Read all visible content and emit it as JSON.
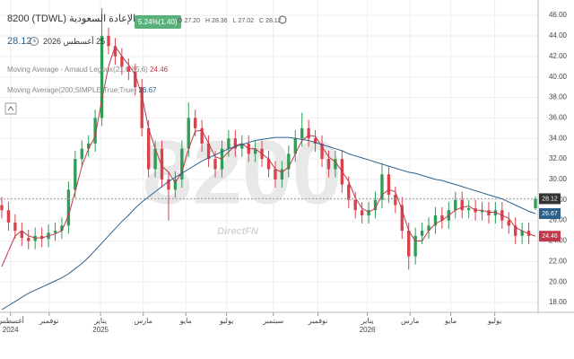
{
  "header": {
    "symbol": "8200 (TDWL)",
    "name": "الإعادة السعودية",
    "change": "5.24%(1.40)",
    "ohlc": [
      {
        "key": "O",
        "text": "27.20"
      },
      {
        "key": "H",
        "text": "28.36"
      },
      {
        "key": "L",
        "text": "27.02"
      },
      {
        "key": "C",
        "text": "28.12"
      }
    ],
    "last": "28.12",
    "date": "25 أغسطس 2026"
  },
  "chart_data": {
    "type": "candlestick",
    "watermark": "8200",
    "brand": "DirectFN",
    "up_color": "#2e9e56",
    "down_color": "#d9424b",
    "grid": true,
    "xlim": [
      -0.27,
      80.4
    ],
    "ylim": [
      17.04,
      47.5
    ],
    "yticks": [
      {
        "value": 18,
        "label": "18.00"
      },
      {
        "value": 20,
        "label": "20.00"
      },
      {
        "value": 22,
        "label": "22.00"
      },
      {
        "value": 24,
        "label": "24.00"
      },
      {
        "value": 26,
        "label": "26.00"
      },
      {
        "value": 28,
        "label": "28.00"
      },
      {
        "value": 30,
        "label": "30.00"
      },
      {
        "value": 32,
        "label": "32.00"
      },
      {
        "value": 34,
        "label": "34.00"
      },
      {
        "value": 36,
        "label": "36.00"
      },
      {
        "value": 38,
        "label": "38.00"
      },
      {
        "value": 40,
        "label": "40.00"
      },
      {
        "value": 42,
        "label": "42.00"
      },
      {
        "value": 44,
        "label": "44.00"
      },
      {
        "value": 46,
        "label": "46.00"
      }
    ],
    "xticks": [
      {
        "value": 1.3,
        "label": "أغسطس"
      },
      {
        "value": 7.1,
        "label": "نوفمبر"
      },
      {
        "value": 14.8,
        "label": "يناير"
      },
      {
        "value": 21.2,
        "label": "مارس"
      },
      {
        "value": 27.6,
        "label": "مايو"
      },
      {
        "value": 33.7,
        "label": "يوليو"
      },
      {
        "value": 40.7,
        "label": "سبتمبر"
      },
      {
        "value": 47.4,
        "label": "نوفمبر"
      },
      {
        "value": 54.8,
        "label": "يناير"
      },
      {
        "value": 61.2,
        "label": "مارس"
      },
      {
        "value": 67.3,
        "label": "مايو"
      },
      {
        "value": 73.9,
        "label": "يوليو"
      }
    ],
    "xyears": [
      {
        "value": 1.3,
        "label": "2024"
      },
      {
        "value": 14.8,
        "label": "2025"
      },
      {
        "value": 54.8,
        "label": "2026"
      }
    ],
    "open": [
      27.5,
      27,
      25.8,
      25,
      24.3,
      24,
      24.5,
      24.2,
      24.8,
      25,
      25.5,
      29,
      32,
      33,
      33.5,
      36,
      44,
      43,
      42,
      41,
      40.5,
      39,
      35,
      31,
      33,
      30,
      29,
      30,
      33,
      36,
      35,
      33.5,
      32,
      31,
      33,
      34,
      33,
      33.5,
      32.5,
      33,
      32,
      31,
      30,
      31,
      32.5,
      34,
      35,
      34,
      33.5,
      32,
      31,
      32,
      29.5,
      28,
      27,
      26.5,
      27,
      28,
      30.5,
      28.5,
      27.5,
      25,
      22.5,
      24.5,
      25,
      25.5,
      26.5,
      26,
      27,
      28,
      27,
      27.2,
      26.8,
      27,
      26.5,
      27,
      26,
      25.5,
      24.5,
      25,
      27.2
    ],
    "high": [
      28.3,
      27.8,
      26.6,
      25.8,
      25.1,
      25.3,
      25.3,
      25.6,
      25.8,
      26.3,
      29.8,
      32.8,
      33.8,
      34.3,
      36.8,
      46.7,
      44.8,
      43.8,
      42.8,
      41.8,
      41.3,
      39.8,
      35.8,
      33.8,
      33.8,
      30.8,
      30.8,
      33.8,
      37.5,
      36.8,
      35.8,
      34.3,
      32.8,
      33.8,
      34.8,
      34.8,
      34.3,
      34.3,
      33.8,
      33.8,
      32.8,
      31.8,
      31.8,
      33.3,
      34.8,
      36.5,
      35.8,
      34.8,
      34.3,
      32.8,
      32.8,
      32.8,
      30.3,
      28.8,
      27.8,
      27.8,
      28.8,
      31.6,
      31.3,
      29.3,
      28.3,
      25.8,
      25.3,
      25.8,
      26.3,
      27.3,
      27.3,
      27.8,
      28.8,
      28.8,
      28,
      28,
      27.8,
      27.8,
      27.8,
      27.8,
      26.8,
      26.3,
      25.8,
      25.8,
      28.36
    ],
    "low": [
      26.2,
      25,
      24.2,
      23.5,
      23.2,
      23.2,
      23.4,
      23.4,
      24,
      24.2,
      24.7,
      28.2,
      31.2,
      32.2,
      32.7,
      35.2,
      42.2,
      41.2,
      40.2,
      39.7,
      38.2,
      34.2,
      30.2,
      30.2,
      29.2,
      26,
      28.2,
      29.2,
      32.2,
      34.2,
      32.7,
      31.2,
      30.2,
      30.2,
      32.2,
      32.2,
      32.2,
      31.7,
      31.7,
      31.2,
      30.2,
      29.2,
      29.2,
      30.2,
      31.7,
      33.2,
      33.2,
      32.7,
      31.2,
      30.2,
      30.2,
      28.7,
      27.2,
      26.2,
      25.7,
      25.7,
      26.2,
      27.2,
      27.7,
      26.7,
      24.2,
      21.2,
      21.7,
      23.7,
      24.2,
      24.7,
      25.2,
      25.2,
      26.2,
      26.2,
      26.2,
      26,
      26,
      25.7,
      25.7,
      25.2,
      24.7,
      23.7,
      23.7,
      23.7,
      27.02
    ],
    "close": [
      27,
      25.8,
      25,
      24.3,
      24,
      24.5,
      24.2,
      24.8,
      25,
      25.5,
      29,
      32,
      33,
      33.5,
      36,
      44,
      43,
      42,
      41,
      40.5,
      39,
      35,
      31,
      33,
      30,
      29,
      30,
      33,
      36,
      35,
      33.5,
      32,
      31,
      33,
      34,
      33,
      33.5,
      32.5,
      33,
      32,
      31,
      30,
      31,
      32.5,
      34,
      35,
      34,
      33.5,
      32,
      31,
      32,
      29.5,
      28,
      27,
      26.5,
      27,
      28,
      30.5,
      28.5,
      27.5,
      25,
      22.5,
      24.5,
      25,
      25.5,
      26.5,
      26,
      27,
      28,
      27,
      27.2,
      26.8,
      27,
      26.5,
      27,
      26,
      25.5,
      24.5,
      25,
      24.5,
      28.12
    ],
    "series": [
      {
        "name": "Moving Average - Arnaud Legoux(21,0.85,6)",
        "color": "#c0394a",
        "values": [
          21.5,
          23,
          24.5,
          25,
          24.5,
          24.3,
          24.3,
          24.5,
          24.7,
          25,
          26.5,
          28.8,
          31.3,
          33,
          34.2,
          37.8,
          41,
          43,
          42,
          41.2,
          40.2,
          38.2,
          35,
          33,
          31.3,
          30.7,
          29.7,
          30.7,
          33,
          34.7,
          34.8,
          33.5,
          32.2,
          32,
          32.7,
          33.3,
          33.5,
          33,
          33,
          32.5,
          32,
          31,
          30.7,
          31.2,
          32.5,
          33.8,
          34.3,
          34.2,
          33.2,
          32.2,
          31.7,
          30.8,
          29.8,
          28.2,
          27.2,
          26.8,
          27.2,
          28.5,
          29,
          28.8,
          27,
          25,
          24,
          24,
          25,
          25.7,
          26,
          26.5,
          27,
          27.3,
          27.4,
          27,
          27,
          26.8,
          26.8,
          26.5,
          26.2,
          25.3,
          25,
          24.7,
          24.46
        ]
      },
      {
        "name": "Moving Average(200;SIMPLE;True;True)",
        "color": "#2d5f8b",
        "values": [
          17.3,
          17.7,
          18.1,
          18.5,
          18.9,
          19.2,
          19.5,
          19.8,
          20.1,
          20.4,
          20.8,
          21.3,
          21.8,
          22.4,
          23.1,
          23.8,
          24.5,
          25.2,
          25.9,
          26.5,
          27.2,
          27.8,
          28.3,
          28.8,
          29.3,
          29.8,
          30.2,
          30.6,
          31,
          31.4,
          31.8,
          32.1,
          32.4,
          32.7,
          33,
          33.2,
          33.4,
          33.6,
          33.8,
          33.9,
          34,
          34.1,
          34.1,
          34.1,
          34,
          33.9,
          33.8,
          33.6,
          33.4,
          33.2,
          33,
          32.8,
          32.5,
          32.3,
          32.1,
          31.9,
          31.7,
          31.5,
          31.3,
          31.1,
          30.9,
          30.7,
          30.6,
          30.4,
          30.2,
          30,
          29.9,
          29.7,
          29.5,
          29.3,
          29.1,
          28.9,
          28.7,
          28.5,
          28.3,
          28.1,
          27.8,
          27.5,
          27.2,
          26.9,
          26.67
        ]
      }
    ]
  }
}
